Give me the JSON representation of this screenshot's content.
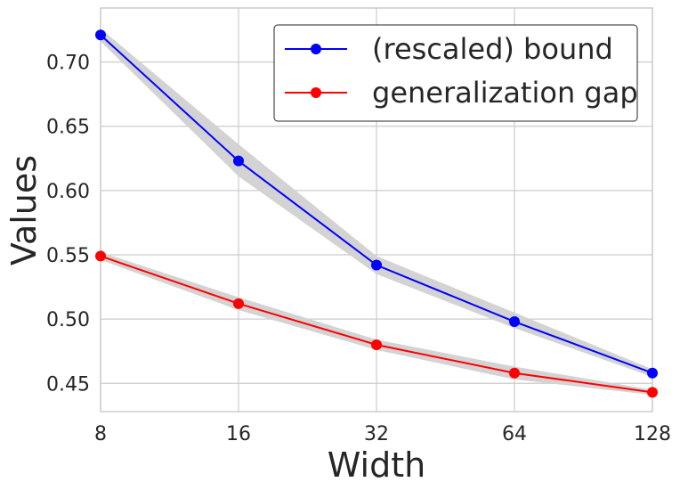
{
  "chart_data": {
    "type": "line",
    "title": "",
    "xlabel": "Width",
    "ylabel": "Values",
    "x_scale": "log2",
    "x": [
      8,
      16,
      32,
      64,
      128
    ],
    "x_tick_labels": [
      "8",
      "16",
      "32",
      "64",
      "128"
    ],
    "y_ticks": [
      0.45,
      0.5,
      0.55,
      0.6,
      0.65,
      0.7
    ],
    "y_tick_labels": [
      "0.45",
      "0.50",
      "0.55",
      "0.60",
      "0.65",
      "0.70"
    ],
    "ylim": [
      0.428,
      0.742
    ],
    "grid": true,
    "legend_position": "top-right",
    "band_color": "#d3d3d3",
    "series": [
      {
        "name": "(rescaled) bound",
        "color": "#0000ff",
        "values": [
          0.721,
          0.623,
          0.542,
          0.498,
          0.458
        ],
        "lower": [
          0.716,
          0.611,
          0.535,
          0.493,
          0.455
        ],
        "upper": [
          0.726,
          0.636,
          0.549,
          0.505,
          0.461
        ]
      },
      {
        "name": "generalization gap",
        "color": "#ff0000",
        "values": [
          0.549,
          0.512,
          0.48,
          0.458,
          0.443
        ],
        "lower": [
          0.546,
          0.507,
          0.476,
          0.453,
          0.441
        ],
        "upper": [
          0.552,
          0.517,
          0.484,
          0.463,
          0.445
        ]
      }
    ]
  }
}
